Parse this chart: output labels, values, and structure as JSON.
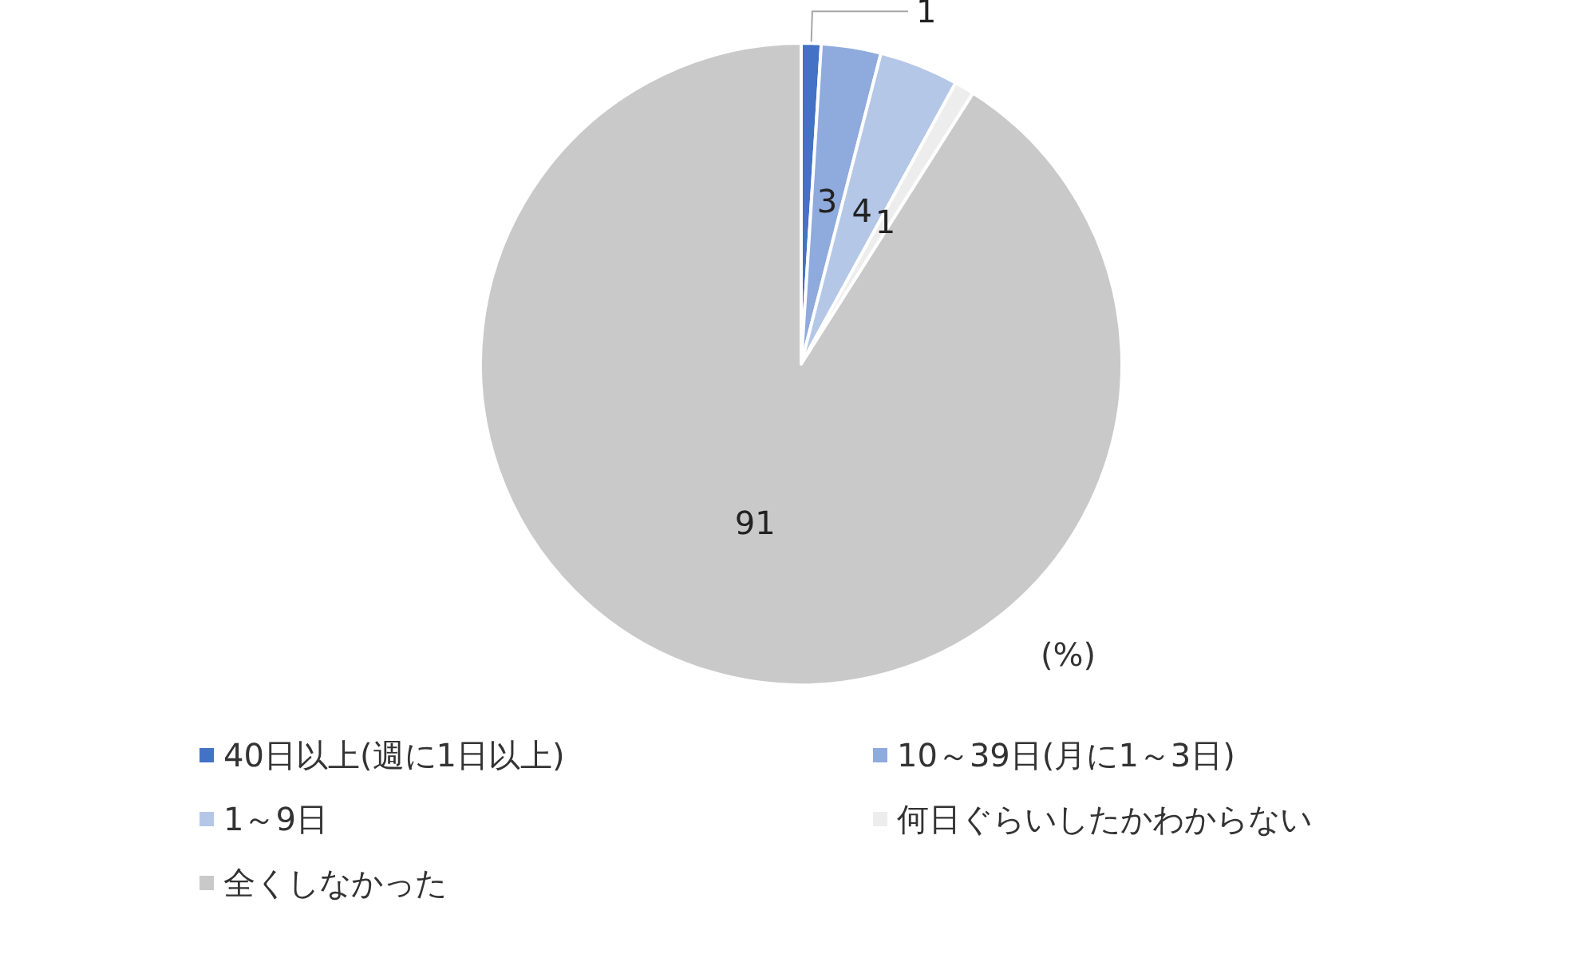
{
  "chart_data": {
    "type": "pie",
    "categories": [
      "40日以上(週に1日以上)",
      "10～39日(月に1～3日)",
      "1～9日",
      "何日ぐらいしたかわからない",
      "全くしなかった"
    ],
    "values": [
      1,
      3,
      4,
      1,
      91
    ],
    "colors": [
      "#4472c4",
      "#8faadc",
      "#b4c7e7",
      "#ededed",
      "#c9c9c9"
    ],
    "data_labels": true,
    "legend": "bottom",
    "annotations": [
      "(%)"
    ]
  }
}
